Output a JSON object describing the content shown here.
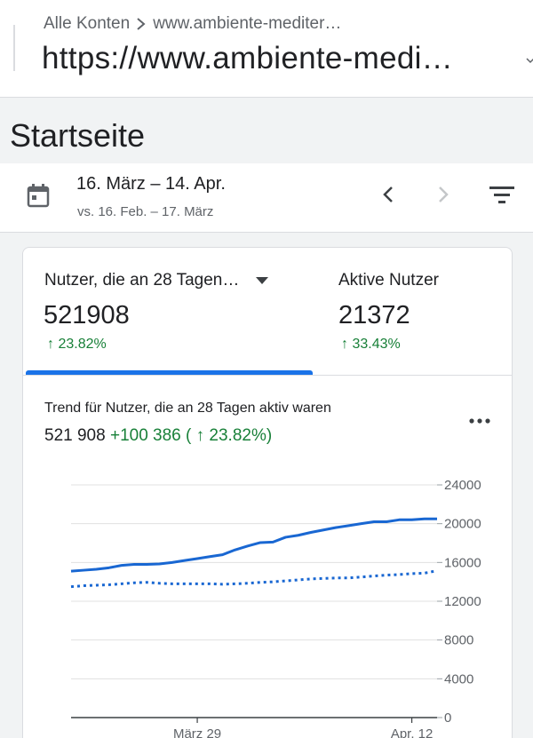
{
  "header": {
    "breadcrumb_root": "Alle Konten",
    "breadcrumb_property": "www.ambiente-mediter…",
    "url": "https://www.ambiente-medi…"
  },
  "page_title": "Startseite",
  "date_range": {
    "current": "16. März – 14. Apr.",
    "comparison": "vs. 16. Feb. – 17. März"
  },
  "metrics": [
    {
      "label": "Nutzer, die an 28 Tagen…",
      "value": "521908",
      "change": "↑ 23.82%"
    },
    {
      "label": "Aktive Nutzer",
      "value": "21372",
      "change": "↑ 33.43%"
    }
  ],
  "trend": {
    "title": "Trend für Nutzer, die an 28 Tagen aktiv waren",
    "value": "521 908",
    "change": "+100 386 ( ↑ 23.82%)"
  },
  "colors": {
    "accent": "#1a73e8",
    "positive": "#188038",
    "line_current": "#1967d2",
    "line_previous": "#1967d2"
  },
  "chart_data": {
    "type": "line",
    "x": [
      0,
      1,
      2,
      3,
      4,
      5,
      6,
      7,
      8,
      9,
      10,
      11,
      12,
      13,
      14,
      15,
      16,
      17,
      18,
      19,
      20,
      21,
      22,
      23,
      24,
      25,
      26,
      27,
      28,
      29
    ],
    "x_tick_labels": [
      {
        "x": 10,
        "label": "März 29"
      },
      {
        "x": 27,
        "label": "Apr. 12"
      }
    ],
    "series": [
      {
        "style": "solid",
        "values": [
          15100,
          15200,
          15300,
          15450,
          15700,
          15800,
          15800,
          15850,
          16000,
          16200,
          16400,
          16600,
          16800,
          17300,
          17700,
          18050,
          18100,
          18600,
          18800,
          19100,
          19350,
          19600,
          19800,
          20000,
          20200,
          20200,
          20400,
          20400,
          20500,
          20500
        ]
      },
      {
        "style": "dotted",
        "values": [
          13500,
          13600,
          13650,
          13700,
          13800,
          13900,
          13950,
          13850,
          13800,
          13800,
          13800,
          13800,
          13750,
          13800,
          13850,
          13950,
          14000,
          14100,
          14200,
          14300,
          14350,
          14400,
          14400,
          14500,
          14600,
          14700,
          14750,
          14850,
          14900,
          15150
        ]
      }
    ],
    "yticks": [
      24000,
      20000,
      16000,
      12000,
      8000,
      4000,
      0
    ],
    "ylim": [
      0,
      24000
    ],
    "grid": true,
    "y_axis_position": "right"
  }
}
